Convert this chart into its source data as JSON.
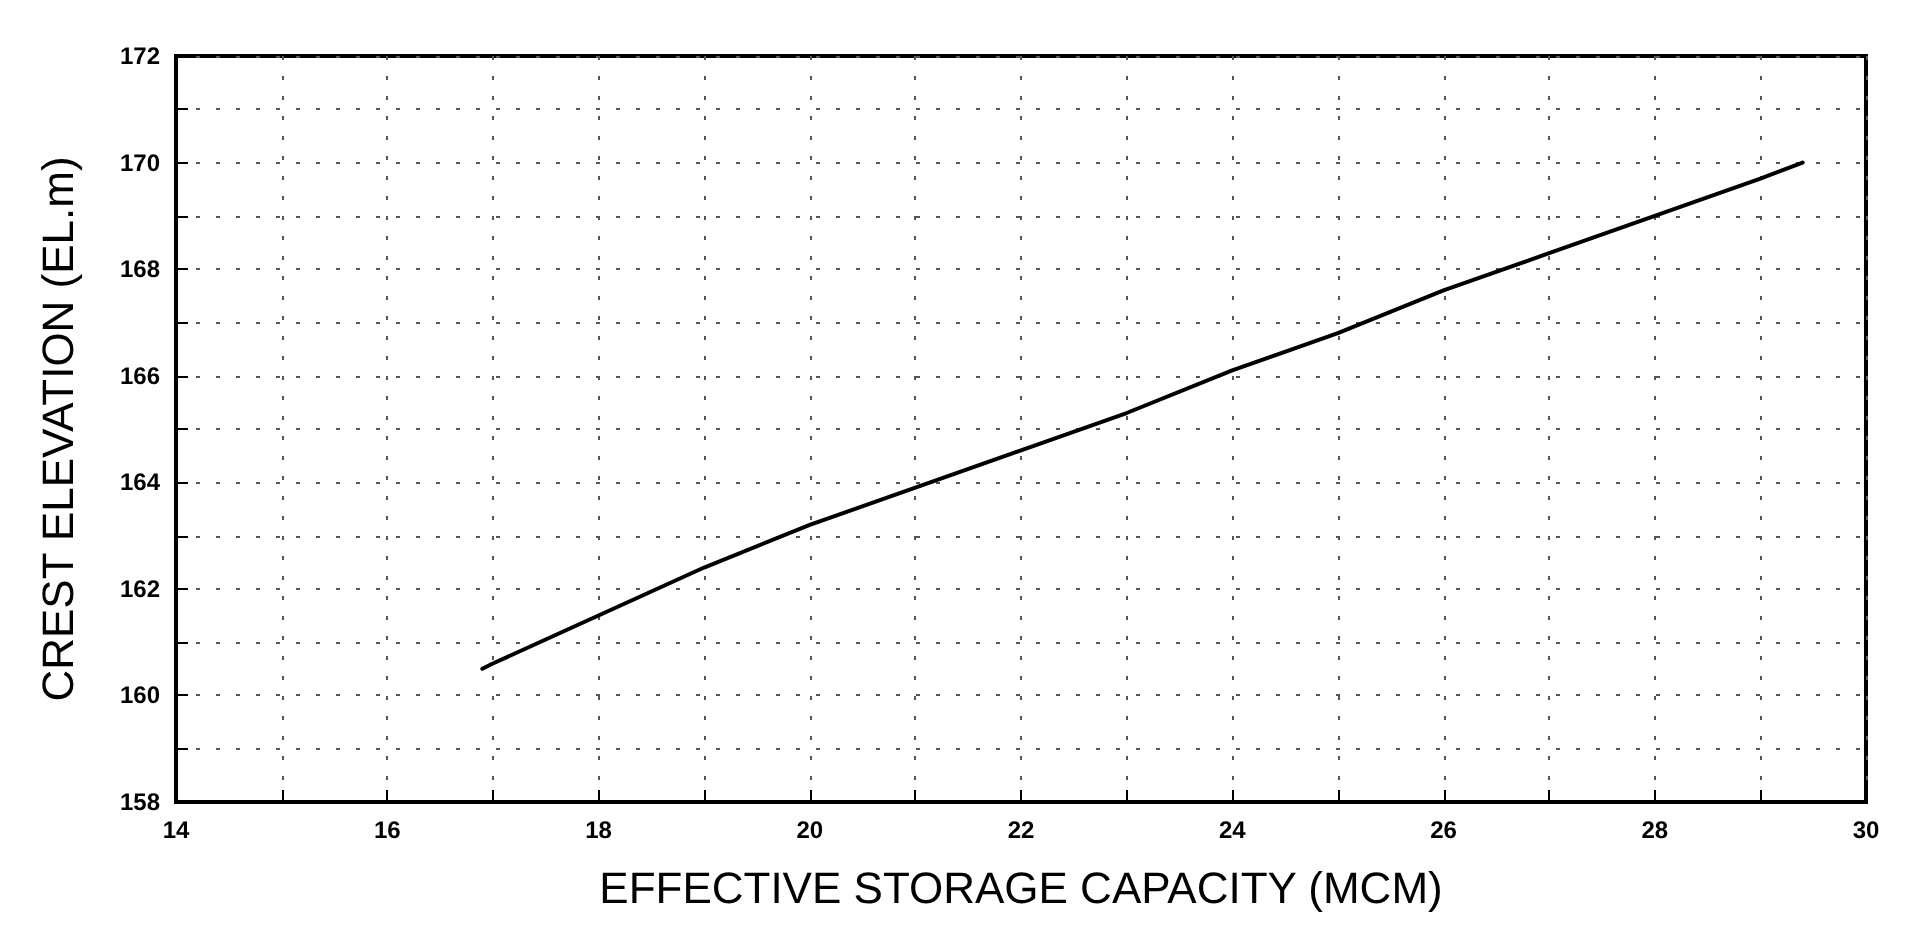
{
  "chart_data": {
    "type": "line",
    "xlabel": "EFFECTIVE STORAGE CAPACITY (MCM)",
    "ylabel": "CREST ELEVATION (EL.m)",
    "x": [
      16.9,
      17,
      18,
      19,
      20,
      21,
      22,
      23,
      24,
      25,
      26,
      27,
      28,
      29,
      29.4
    ],
    "series": [
      {
        "color": "#000000",
        "values": [
          160.5,
          160.6,
          161.5,
          162.4,
          163.2,
          163.9,
          164.6,
          165.3,
          166.1,
          166.8,
          167.6,
          168.3,
          169.0,
          169.7,
          170.0
        ]
      }
    ],
    "xlim": [
      14,
      30
    ],
    "ylim": [
      158,
      172
    ],
    "xticks": [
      14,
      {
        "value": 15,
        "label": null
      },
      16,
      {
        "value": 17,
        "label": null
      },
      18,
      {
        "value": 19,
        "label": null
      },
      20,
      {
        "value": 21,
        "label": null
      },
      22,
      {
        "value": 23,
        "label": null
      },
      24,
      {
        "value": 25,
        "label": null
      },
      26,
      {
        "value": 27,
        "label": null
      },
      28,
      {
        "value": 29,
        "label": null
      },
      30
    ],
    "yticks": [
      158,
      {
        "value": 159,
        "label": null
      },
      160,
      {
        "value": 161,
        "label": null
      },
      162,
      {
        "value": 163,
        "label": null
      },
      164,
      {
        "value": 165,
        "label": null
      },
      166,
      {
        "value": 167,
        "label": null
      },
      168,
      {
        "value": 169,
        "label": null
      },
      170,
      {
        "value": 171,
        "label": null
      },
      172
    ],
    "grid": true,
    "marker": "none",
    "line_style": "solid"
  }
}
